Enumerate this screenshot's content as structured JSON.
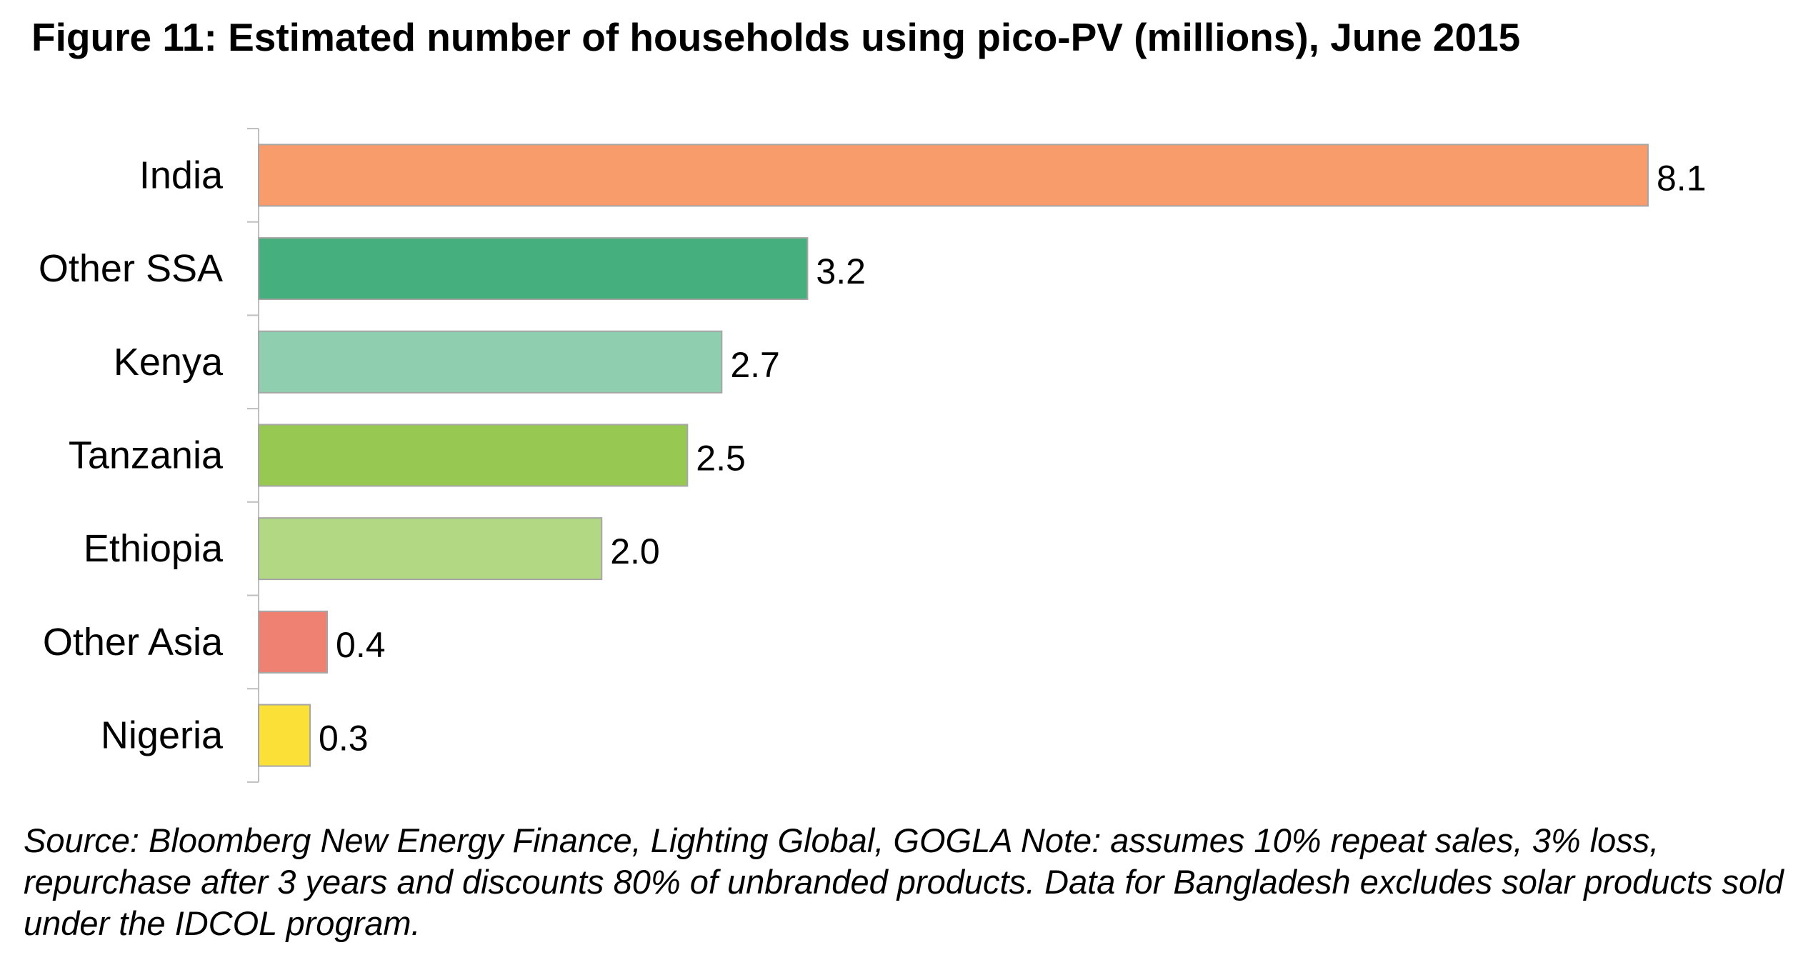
{
  "chart_data": {
    "type": "bar",
    "orientation": "horizontal",
    "title": "Figure 11: Estimated number of households using pico-PV (millions), June 2015",
    "categories": [
      "India",
      "Other SSA",
      "Kenya",
      "Tanzania",
      "Ethiopia",
      "Other Asia",
      "Nigeria"
    ],
    "values": [
      8.1,
      3.2,
      2.7,
      2.5,
      2.0,
      0.4,
      0.3
    ],
    "value_labels": [
      "8.1",
      "3.2",
      "2.7",
      "2.5",
      "2.0",
      "0.4",
      "0.3"
    ],
    "colors": [
      "#F99C6C",
      "#46AF7E",
      "#8FCFAF",
      "#97C952",
      "#B3D883",
      "#EF8173",
      "#FBE038"
    ],
    "xlim": [
      0,
      8.1
    ],
    "grid": false,
    "legend": "none",
    "xlabel": "",
    "ylabel": "",
    "note": "Source: Bloomberg New Energy Finance, Lighting Global, GOGLA Note: assumes 10% repeat sales, 3% loss, repurchase after 3 years and discounts 80% of unbranded products. Data for Bangladesh excludes solar products sold under the IDCOL program."
  }
}
